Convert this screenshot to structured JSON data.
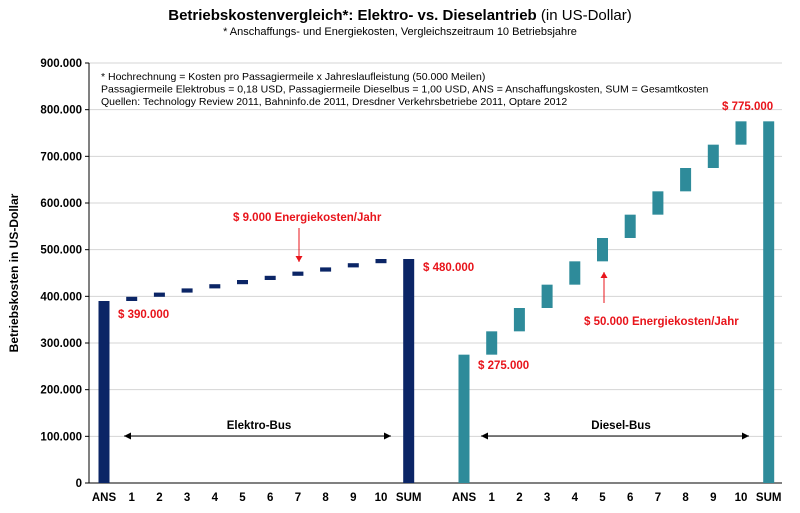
{
  "chart_data": {
    "type": "bar",
    "subtype": "waterfall",
    "title_main": "Betriebskostenvergleich*: Elektro- vs. Dieselantrieb",
    "title_suffix": "(in US-Dollar)",
    "subtitle": "* Anschaffungs- und Energiekosten, Vergleichszeitraum 10 Betriebsjahre",
    "ylabel": "Betriebskosten in US-Dollar",
    "ylim": [
      0,
      900000
    ],
    "yticks": [
      "0",
      "100.000",
      "200.000",
      "300.000",
      "400.000",
      "500.000",
      "600.000",
      "700.000",
      "800.000",
      "900.000"
    ],
    "grid": true,
    "notes": [
      "* Hochrechnung = Kosten pro Passagiermeile x Jahreslaufleistung (50.000 Meilen)",
      "Passagiermeile Elektrobus = 0,18 USD, Passagiermeile Dieselbus = 1,00 USD, ANS = Anschaffungskosten, SUM = Gesamtkosten",
      "Quellen: Technology Review 2011, Bahninfo.de 2011, Dresdner Verkehrsbetriebe 2011, Optare 2012"
    ],
    "categories": [
      "ANS",
      "1",
      "2",
      "3",
      "4",
      "5",
      "6",
      "7",
      "8",
      "9",
      "10",
      "SUM"
    ],
    "series": [
      {
        "name": "Elektro-Bus",
        "color": "#0b2566",
        "acquisition": 390000,
        "annual_energy": 9000,
        "values": [
          {
            "category": "ANS",
            "start": 0,
            "end": 390000
          },
          {
            "category": "1",
            "start": 390000,
            "end": 399000
          },
          {
            "category": "2",
            "start": 399000,
            "end": 408000
          },
          {
            "category": "3",
            "start": 408000,
            "end": 417000
          },
          {
            "category": "4",
            "start": 417000,
            "end": 426000
          },
          {
            "category": "5",
            "start": 426000,
            "end": 435000
          },
          {
            "category": "6",
            "start": 435000,
            "end": 444000
          },
          {
            "category": "7",
            "start": 444000,
            "end": 453000
          },
          {
            "category": "8",
            "start": 453000,
            "end": 462000
          },
          {
            "category": "9",
            "start": 462000,
            "end": 471000
          },
          {
            "category": "10",
            "start": 471000,
            "end": 480000
          },
          {
            "category": "SUM",
            "start": 0,
            "end": 480000
          }
        ]
      },
      {
        "name": "Diesel-Bus",
        "color": "#2e8b9a",
        "acquisition": 275000,
        "annual_energy": 50000,
        "values": [
          {
            "category": "ANS",
            "start": 0,
            "end": 275000
          },
          {
            "category": "1",
            "start": 275000,
            "end": 325000
          },
          {
            "category": "2",
            "start": 325000,
            "end": 375000
          },
          {
            "category": "3",
            "start": 375000,
            "end": 425000
          },
          {
            "category": "4",
            "start": 425000,
            "end": 475000
          },
          {
            "category": "5",
            "start": 475000,
            "end": 525000
          },
          {
            "category": "6",
            "start": 525000,
            "end": 575000
          },
          {
            "category": "7",
            "start": 575000,
            "end": 625000
          },
          {
            "category": "8",
            "start": 625000,
            "end": 675000
          },
          {
            "category": "9",
            "start": 675000,
            "end": 725000
          },
          {
            "category": "10",
            "start": 725000,
            "end": 775000
          },
          {
            "category": "SUM",
            "start": 0,
            "end": 775000
          }
        ]
      }
    ],
    "annotations": {
      "color": "#e8141b",
      "elektro_ans": "$ 390.000",
      "elektro_sum": "$ 480.000",
      "elektro_energy": "$ 9.000 Energiekosten/Jahr",
      "diesel_ans": "$ 275.000",
      "diesel_sum": "$ 775.000",
      "diesel_energy": "$ 50.000 Energiekosten/Jahr"
    },
    "group_labels": {
      "elektro": "Elektro-Bus",
      "diesel": "Diesel-Bus"
    }
  }
}
